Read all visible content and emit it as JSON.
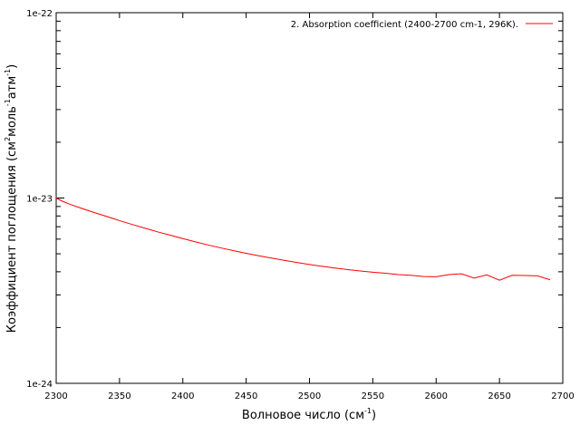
{
  "chart_data": {
    "type": "line",
    "xlabel": "Волновое число (см",
    "xlabel_sup": "-1",
    "xlabel_end": ")",
    "ylabel_parts": [
      "Коэффициент поглощения (см",
      "2",
      "моль",
      "-1",
      "атм",
      "-1",
      ")"
    ],
    "xlim": [
      2300,
      2700
    ],
    "ylim": [
      1e-24,
      1e-22
    ],
    "yscale": "log",
    "grid": false,
    "legend_position": "top-right",
    "x_ticks": [
      2300,
      2350,
      2400,
      2450,
      2500,
      2550,
      2600,
      2650,
      2700
    ],
    "x_tick_labels": [
      "2300",
      "2350",
      "2400",
      "2450",
      "2500",
      "2550",
      "2600",
      "2650",
      "2700"
    ],
    "y_ticks": [
      1e-24,
      1e-23,
      1e-22
    ],
    "y_tick_labels": [
      "1e-24",
      "1e-23",
      "1e-22"
    ],
    "series": [
      {
        "name": "2. Absorption coefficient (2400-2700 cm-1, 296K).",
        "color": "#ff0000",
        "x": [
          2300,
          2305,
          2310,
          2320,
          2330,
          2340,
          2350,
          2360,
          2370,
          2380,
          2390,
          2400,
          2410,
          2420,
          2430,
          2440,
          2450,
          2460,
          2470,
          2480,
          2490,
          2500,
          2510,
          2520,
          2530,
          2540,
          2550,
          2560,
          2570,
          2580,
          2590,
          2600,
          2610,
          2620,
          2630,
          2640,
          2650,
          2660,
          2670,
          2680,
          2690
        ],
        "y": [
          1e-23,
          9.6e-24,
          9.3e-24,
          8.8e-24,
          8.35e-24,
          7.95e-24,
          7.55e-24,
          7.2e-24,
          6.88e-24,
          6.57e-24,
          6.3e-24,
          6.04e-24,
          5.8e-24,
          5.58e-24,
          5.38e-24,
          5.2e-24,
          5.03e-24,
          4.88e-24,
          4.74e-24,
          4.61e-24,
          4.49e-24,
          4.38e-24,
          4.28e-24,
          4.19e-24,
          4.11e-24,
          4.04e-24,
          3.98e-24,
          3.93e-24,
          3.86e-24,
          3.83e-24,
          3.77e-24,
          3.76e-24,
          3.86e-24,
          3.9e-24,
          3.7e-24,
          3.85e-24,
          3.6e-24,
          3.83e-24,
          3.82e-24,
          3.8e-24,
          3.62e-24
        ]
      }
    ]
  }
}
